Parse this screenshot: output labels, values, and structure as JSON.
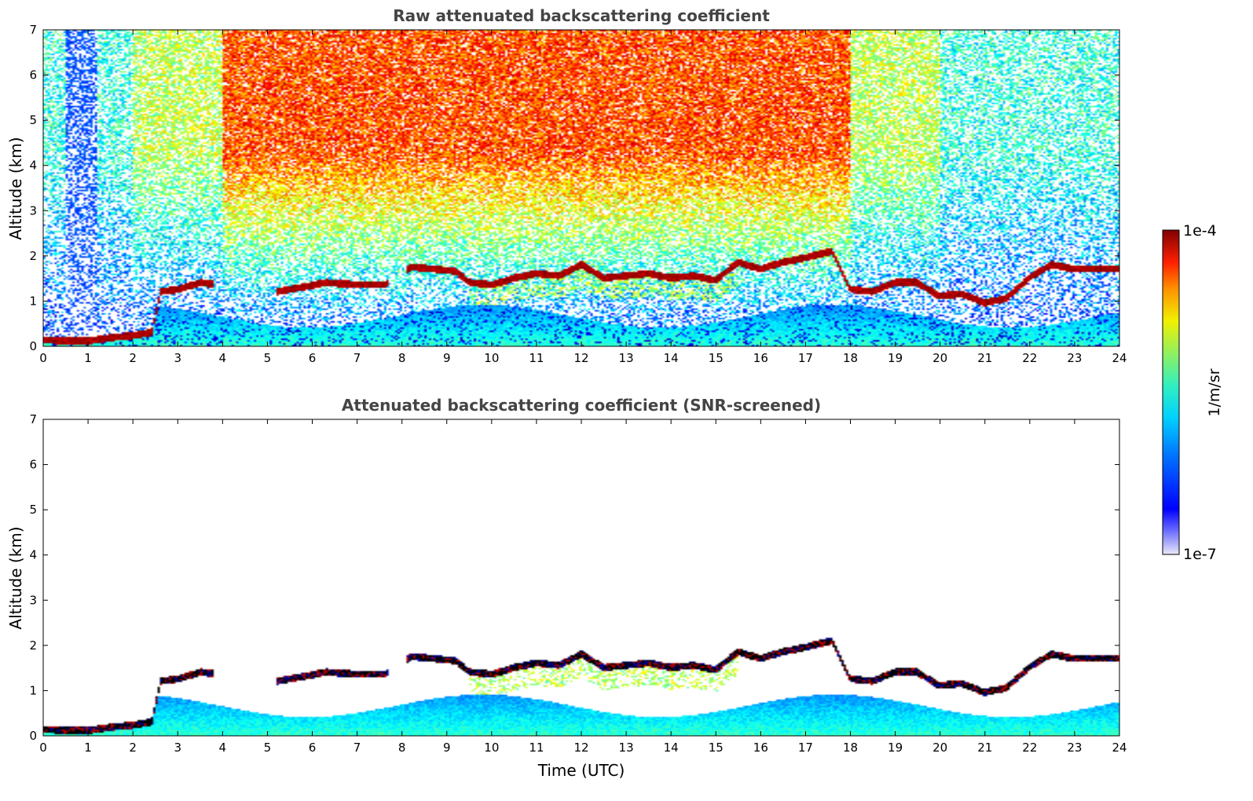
{
  "chart_data": [
    {
      "type": "heatmap",
      "title": "Raw attenuated backscattering coefficient",
      "xlabel": "",
      "ylabel": "Altitude (km)",
      "xlim": [
        0,
        24
      ],
      "ylim": [
        0,
        7
      ],
      "xticks": [
        "0",
        "1",
        "2",
        "3",
        "4",
        "5",
        "6",
        "7",
        "8",
        "9",
        "10",
        "11",
        "12",
        "13",
        "14",
        "15",
        "16",
        "17",
        "18",
        "19",
        "20",
        "21",
        "22",
        "23",
        "24"
      ],
      "yticks": [
        "0",
        "1",
        "2",
        "3",
        "4",
        "5",
        "6",
        "7"
      ],
      "screened": false,
      "layer_top_km": [
        [
          0.0,
          0.12
        ],
        [
          1.0,
          0.1
        ],
        [
          1.5,
          0.18
        ],
        [
          2.0,
          0.22
        ],
        [
          2.4,
          0.3
        ],
        [
          2.6,
          1.2
        ],
        [
          3.0,
          1.25
        ],
        [
          3.5,
          1.4
        ],
        [
          5.2,
          1.2
        ],
        [
          5.8,
          1.3
        ],
        [
          6.3,
          1.4
        ],
        [
          7.0,
          1.35
        ],
        [
          7.6,
          1.35
        ],
        [
          8.2,
          1.75
        ],
        [
          8.7,
          1.7
        ],
        [
          9.2,
          1.65
        ],
        [
          9.5,
          1.4
        ],
        [
          10.0,
          1.35
        ],
        [
          10.5,
          1.5
        ],
        [
          11.0,
          1.6
        ],
        [
          11.5,
          1.55
        ],
        [
          12.0,
          1.8
        ],
        [
          12.5,
          1.5
        ],
        [
          13.0,
          1.55
        ],
        [
          13.5,
          1.6
        ],
        [
          14.0,
          1.5
        ],
        [
          14.5,
          1.55
        ],
        [
          15.0,
          1.45
        ],
        [
          15.5,
          1.85
        ],
        [
          16.0,
          1.7
        ],
        [
          16.5,
          1.85
        ],
        [
          17.0,
          1.95
        ],
        [
          17.6,
          2.1
        ],
        [
          18.0,
          1.25
        ],
        [
          18.5,
          1.2
        ],
        [
          19.0,
          1.4
        ],
        [
          19.5,
          1.4
        ],
        [
          20.0,
          1.1
        ],
        [
          20.5,
          1.15
        ],
        [
          21.0,
          0.95
        ],
        [
          21.5,
          1.05
        ],
        [
          22.0,
          1.5
        ],
        [
          22.5,
          1.8
        ],
        [
          23.0,
          1.7
        ],
        [
          24.0,
          1.7
        ]
      ]
    },
    {
      "type": "heatmap",
      "title": "Attenuated backscattering coefficient (SNR-screened)",
      "xlabel": "Time (UTC)",
      "ylabel": "Altitude (km)",
      "xlim": [
        0,
        24
      ],
      "ylim": [
        0,
        7
      ],
      "xticks": [
        "0",
        "1",
        "2",
        "3",
        "4",
        "5",
        "6",
        "7",
        "8",
        "9",
        "10",
        "11",
        "12",
        "13",
        "14",
        "15",
        "16",
        "17",
        "18",
        "19",
        "20",
        "21",
        "22",
        "23",
        "24"
      ],
      "yticks": [
        "0",
        "1",
        "2",
        "3",
        "4",
        "5",
        "6",
        "7"
      ],
      "screened": true
    }
  ],
  "colorbar": {
    "label": "1/m/sr",
    "max_label": "1e-4",
    "min_label": "1e-7",
    "colormap": "jet",
    "scale": "log",
    "range": [
      1e-07,
      0.0001
    ]
  }
}
